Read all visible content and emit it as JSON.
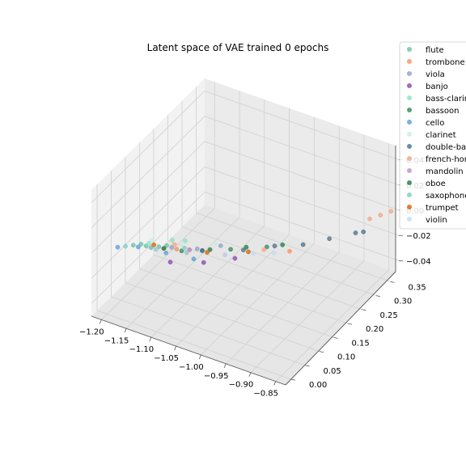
{
  "chart_data": {
    "type": "scatter",
    "projection": "3d",
    "title": "Latent space of VAE trained 0 epochs",
    "xlabel": "",
    "ylabel": "",
    "zlabel": "",
    "x_ticks": [
      -1.2,
      -1.15,
      -1.1,
      -1.05,
      -1.0,
      -0.95,
      -0.9,
      -0.85
    ],
    "y_ticks": [
      0.0,
      0.05,
      0.1,
      0.15,
      0.2,
      0.25,
      0.3,
      0.35
    ],
    "z_ticks": [
      -0.04,
      -0.02,
      0.0,
      0.02,
      0.04
    ],
    "x_tick_labels": [
      "−1.20",
      "−1.15",
      "−1.10",
      "−1.05",
      "−1.00",
      "−0.95",
      "−0.90",
      "−0.85"
    ],
    "y_tick_labels": [
      "0.00",
      "0.05",
      "0.10",
      "0.15",
      "0.20",
      "0.25",
      "0.30",
      "0.35"
    ],
    "z_tick_labels": [
      "−0.04",
      "−0.02",
      "0.00",
      "0.02",
      "0.04"
    ],
    "xlim": [
      -1.22,
      -0.83
    ],
    "ylim": [
      -0.02,
      0.38
    ],
    "zlim": [
      -0.05,
      0.05
    ],
    "grid": true,
    "legend_position": "top-right",
    "series": [
      {
        "name": "flute",
        "color": "#66c2a5",
        "points": [
          [
            -1.17,
            0.04,
            0.0
          ],
          [
            -1.15,
            0.05,
            0.0
          ],
          [
            -1.13,
            0.06,
            0.0
          ],
          [
            -1.16,
            0.05,
            0.0
          ],
          [
            -1.12,
            0.07,
            0.0
          ]
        ]
      },
      {
        "name": "trombone",
        "color": "#fc8d62",
        "points": [
          [
            -1.12,
            0.06,
            0.0
          ],
          [
            -1.1,
            0.07,
            0.0
          ],
          [
            -1.08,
            0.08,
            0.0
          ],
          [
            -0.93,
            0.17,
            0.0
          ]
        ]
      },
      {
        "name": "viola",
        "color": "#8da0cb",
        "points": [
          [
            -1.14,
            0.05,
            0.0
          ],
          [
            -1.11,
            0.07,
            0.0
          ],
          [
            -1.07,
            0.09,
            0.0
          ],
          [
            -1.04,
            0.12,
            0.0
          ]
        ]
      },
      {
        "name": "banjo",
        "color": "#8e44ad",
        "points": [
          [
            -1.09,
            0.03,
            0.0
          ],
          [
            -1.04,
            0.06,
            0.0
          ],
          [
            -1.0,
            0.1,
            0.0
          ]
        ]
      },
      {
        "name": "bass-clarinet",
        "color": "#8ee0c0",
        "points": [
          [
            -1.15,
            0.06,
            0.0
          ],
          [
            -1.1,
            0.1,
            0.0
          ],
          [
            -1.12,
            0.09,
            0.0
          ]
        ]
      },
      {
        "name": "bassoon",
        "color": "#2e8b57",
        "points": [
          [
            -1.13,
            0.05,
            0.0
          ],
          [
            -1.09,
            0.07,
            0.0
          ],
          [
            -1.06,
            0.09,
            0.0
          ],
          [
            -1.02,
            0.12,
            0.0
          ],
          [
            -0.97,
            0.16,
            0.0
          ]
        ]
      },
      {
        "name": "cello",
        "color": "#5b9bd5",
        "points": [
          [
            -1.19,
            0.02,
            0.0
          ],
          [
            -1.16,
            0.04,
            0.0
          ],
          [
            -1.11,
            0.05,
            0.0
          ],
          [
            -1.06,
            0.06,
            0.0
          ]
        ]
      },
      {
        "name": "clarinet",
        "color": "#c8ece6",
        "points": [
          [
            -1.15,
            0.07,
            0.0
          ],
          [
            -1.1,
            0.09,
            0.0
          ],
          [
            -1.05,
            0.12,
            0.0
          ]
        ]
      },
      {
        "name": "double-bass",
        "color": "#4a6f8a",
        "points": [
          [
            -1.06,
            0.09,
            0.0
          ],
          [
            -1.0,
            0.13,
            0.0
          ],
          [
            -0.96,
            0.17,
            0.0
          ],
          [
            -0.92,
            0.2,
            0.0
          ],
          [
            -0.89,
            0.24,
            0.0
          ],
          [
            -0.86,
            0.28,
            0.0
          ],
          [
            -0.85,
            0.29,
            0.0
          ]
        ]
      },
      {
        "name": "french-horn",
        "color": "#f4a582",
        "points": [
          [
            -1.11,
            0.08,
            0.0
          ],
          [
            -0.97,
            0.15,
            0.0
          ],
          [
            -0.86,
            0.33,
            0.0
          ],
          [
            -0.85,
            0.35,
            0.0
          ],
          [
            -0.84,
            0.37,
            0.0
          ]
        ]
      },
      {
        "name": "mandolin",
        "color": "#b590d0",
        "points": [
          [
            -1.08,
            0.08,
            0.0
          ],
          [
            -1.02,
            0.1,
            0.0
          ]
        ]
      },
      {
        "name": "oboe",
        "color": "#1b7a4a",
        "points": [
          [
            -1.12,
            0.06,
            0.0
          ],
          [
            -1.08,
            0.07,
            0.0
          ],
          [
            -1.05,
            0.1,
            0.0
          ],
          [
            -1.0,
            0.14,
            0.0
          ],
          [
            -0.95,
            0.18,
            0.0
          ]
        ]
      },
      {
        "name": "saxophone",
        "color": "#7fcdbb",
        "points": [
          [
            -1.18,
            0.03,
            0.0
          ],
          [
            -1.14,
            0.05,
            0.0
          ],
          [
            -1.09,
            0.08,
            0.0
          ]
        ]
      },
      {
        "name": "trumpet",
        "color": "#d95f02",
        "points": [
          [
            -1.14,
            0.06,
            0.0
          ],
          [
            -1.05,
            0.09,
            0.0
          ],
          [
            -0.99,
            0.13,
            0.0
          ]
        ]
      },
      {
        "name": "violin",
        "color": "#c6dbef",
        "points": [
          [
            -1.13,
            0.05,
            0.0
          ],
          [
            -1.08,
            0.07,
            0.0
          ],
          [
            -1.02,
            0.1,
            0.0
          ],
          [
            -0.98,
            0.13,
            0.0
          ],
          [
            -0.95,
            0.15,
            0.0
          ]
        ]
      }
    ]
  }
}
